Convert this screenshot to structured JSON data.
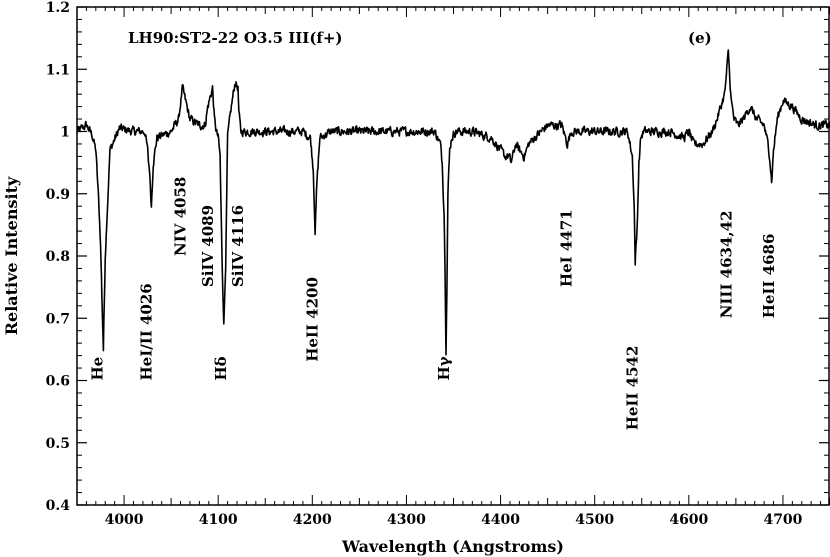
{
  "chart_data": {
    "type": "line",
    "title": "LH90:ST2-22  O3.5  III(f+)",
    "panel_label": "(e)",
    "xlabel": "Wavelength (Angstroms)",
    "ylabel": "Relative Intensity",
    "xlim": [
      3950,
      4750
    ],
    "ylim": [
      0.4,
      1.2
    ],
    "x_ticks": [
      4000,
      4100,
      4200,
      4300,
      4400,
      4500,
      4600,
      4700
    ],
    "x_tick_labels": [
      "4000",
      "4100",
      "4200",
      "4300",
      "4400",
      "4500",
      "4600",
      "4700"
    ],
    "y_ticks": [
      0.4,
      0.5,
      0.6,
      0.7,
      0.8,
      0.9,
      1.0,
      1.1,
      1.2
    ],
    "y_tick_labels": [
      "0.4",
      "0.5",
      "0.6",
      "0.7",
      "0.8",
      "0.9",
      "1",
      "1.1",
      "1.2"
    ],
    "grid": false,
    "series": [
      {
        "x": [
          3950,
          3960,
          3966,
          3970,
          3973,
          3975,
          3978,
          3980,
          3985,
          3995,
          4010,
          4022,
          4025,
          4026,
          4027,
          4029,
          4031,
          4035,
          4050,
          4058,
          4062,
          4070,
          4080,
          4086,
          4089,
          4094,
          4096,
          4098,
          4100,
          4102,
          4104,
          4106,
          4108,
          4110,
          4114,
          4116,
          4118,
          4121,
          4122,
          4124,
          4130,
          4150,
          4170,
          4190,
          4198,
          4201,
          4203,
          4205,
          4208,
          4220,
          4250,
          4280,
          4300,
          4330,
          4336,
          4338,
          4340,
          4341,
          4342,
          4343,
          4344,
          4346,
          4348,
          4352,
          4370,
          4390,
          4400,
          4405,
          4409,
          4411,
          4413,
          4416,
          4420,
          4425,
          4430,
          4436,
          4450,
          4465,
          4471,
          4475,
          4480,
          4495,
          4505,
          4520,
          4535,
          4540,
          4542,
          4543,
          4545,
          4547,
          4549,
          4552,
          4560,
          4580,
          4595,
          4600,
          4605,
          4615,
          4625,
          4630,
          4634,
          4638,
          4640,
          4642,
          4643,
          4645,
          4648,
          4652,
          4658,
          4665,
          4672,
          4680,
          4684,
          4686,
          4688,
          4690,
          4694,
          4700,
          4710,
          4720,
          4735,
          4750
        ],
        "y": [
          1.0,
          1.01,
          0.995,
          0.97,
          0.89,
          0.82,
          0.65,
          0.8,
          0.97,
          1.005,
          1.0,
          1.0,
          0.97,
          0.95,
          0.94,
          0.88,
          0.95,
          0.99,
          1.0,
          1.02,
          1.07,
          1.02,
          1.01,
          1.01,
          1.04,
          1.07,
          1.02,
          1.0,
          0.99,
          0.96,
          0.8,
          0.69,
          0.79,
          0.99,
          1.04,
          1.06,
          1.08,
          1.07,
          1.03,
          1.0,
          1.0,
          1.0,
          1.0,
          1.0,
          0.99,
          0.94,
          0.84,
          0.92,
          0.99,
          1.0,
          1.0,
          1.0,
          1.0,
          1.0,
          0.98,
          0.95,
          0.87,
          0.78,
          0.65,
          0.75,
          0.9,
          0.97,
          0.99,
          1.0,
          1.0,
          0.99,
          0.97,
          0.96,
          0.96,
          0.95,
          0.96,
          0.98,
          0.97,
          0.96,
          0.98,
          0.99,
          1.01,
          1.01,
          0.98,
          1.0,
          1.0,
          1.0,
          1.0,
          1.0,
          1.0,
          0.96,
          0.88,
          0.79,
          0.84,
          0.95,
          0.99,
          1.0,
          1.0,
          1.0,
          0.99,
          1.0,
          0.98,
          0.98,
          1.0,
          1.02,
          1.04,
          1.06,
          1.09,
          1.13,
          1.1,
          1.05,
          1.02,
          1.01,
          1.02,
          1.04,
          1.02,
          1.01,
          0.98,
          0.96,
          0.92,
          0.97,
          1.02,
          1.05,
          1.04,
          1.02,
          1.01,
          1.01
        ]
      }
    ],
    "annotations": [
      {
        "text": "He",
        "x": 3972,
        "y": 0.6
      },
      {
        "text": "HeI/II 4026",
        "x": 4024,
        "y": 0.6
      },
      {
        "text": "NIV 4058",
        "x": 4060,
        "y": 0.8
      },
      {
        "text": "SiIV 4089",
        "x": 4089,
        "y": 0.75
      },
      {
        "text": "Hδ",
        "x": 4103,
        "y": 0.6
      },
      {
        "text": "SiIV 4116",
        "x": 4121,
        "y": 0.75
      },
      {
        "text": "HeII 4200",
        "x": 4200,
        "y": 0.63
      },
      {
        "text": "Hγ",
        "x": 4340,
        "y": 0.6
      },
      {
        "text": "HeI 4471",
        "x": 4470,
        "y": 0.75
      },
      {
        "text": "HeII 4542",
        "x": 4540,
        "y": 0.52
      },
      {
        "text": "NIII 4634,42",
        "x": 4640,
        "y": 0.7
      },
      {
        "text": "HeII 4686",
        "x": 4685,
        "y": 0.7
      }
    ]
  }
}
